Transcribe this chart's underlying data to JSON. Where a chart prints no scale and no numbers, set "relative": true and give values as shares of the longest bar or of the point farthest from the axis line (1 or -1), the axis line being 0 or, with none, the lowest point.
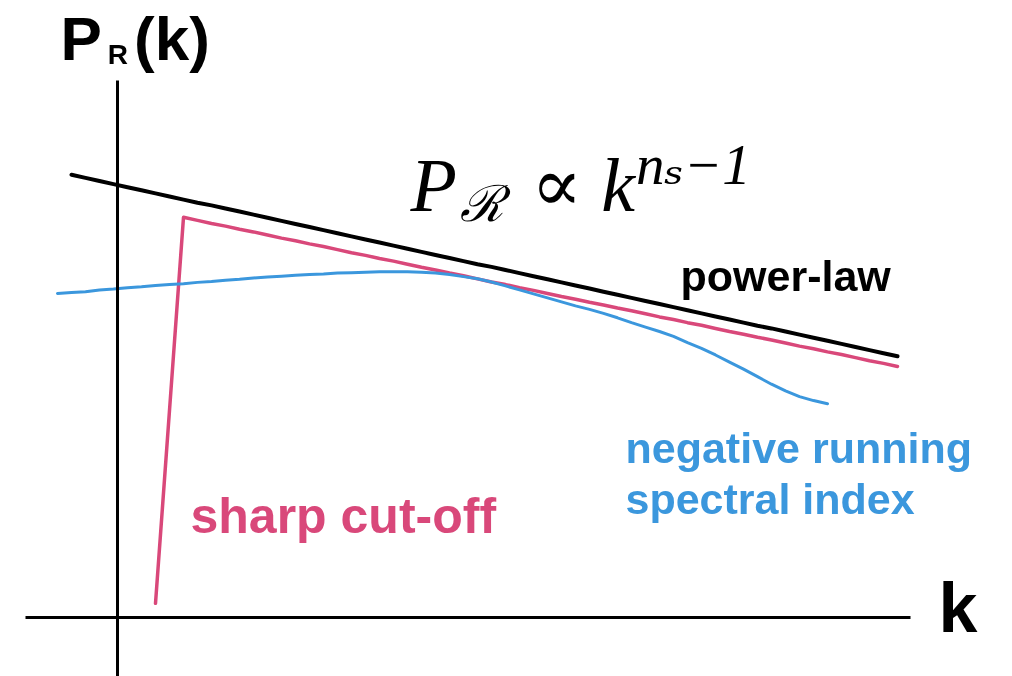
{
  "chart_data": {
    "type": "line",
    "relative": true,
    "xlabel": "k",
    "ylabel": "P$_{R}$(k)",
    "annotations": [
      "P$_{ℛ}$ ∝ k$^{nₛ−1}$"
    ],
    "categories": [
      null,
      null,
      null,
      null,
      null,
      null,
      null,
      null,
      null,
      null,
      null,
      null,
      null,
      null,
      null,
      null,
      null,
      null,
      null,
      null,
      null,
      null,
      null,
      null,
      null,
      null,
      null,
      null,
      null,
      null,
      null,
      null,
      null,
      null,
      null,
      null,
      null,
      null,
      null,
      null,
      null,
      null,
      null,
      null,
      null,
      null,
      null,
      null,
      null,
      null,
      null,
      null,
      null,
      null,
      null,
      null,
      null,
      null,
      null,
      null,
      null
    ],
    "series": [
      {
        "name": "power-law",
        "color": "#000000",
        "values": [
          null,
          1,
          0.993,
          0.986,
          0.979,
          0.972,
          0.965,
          0.958,
          0.951,
          0.944,
          0.937,
          0.931,
          0.924,
          0.917,
          0.91,
          0.903,
          0.896,
          0.889,
          0.882,
          0.875,
          0.868,
          0.861,
          0.854,
          0.847,
          0.84,
          0.833,
          0.826,
          0.819,
          0.812,
          0.805,
          0.798,
          0.792,
          0.785,
          0.778,
          0.771,
          0.764,
          0.757,
          0.75,
          0.743,
          0.736,
          0.729,
          0.722,
          0.715,
          0.708,
          0.701,
          0.694,
          0.687,
          0.68,
          0.673,
          0.666,
          0.659,
          0.653,
          0.646,
          0.639,
          0.632,
          0.625,
          0.618,
          0.611,
          0.604,
          0.597,
          0.59
        ]
      },
      {
        "name": "sharp cut-off",
        "color": "#d9487a",
        "values": [
          null,
          null,
          null,
          null,
          null,
          null,
          null,
          0.032,
          0.468,
          0.904,
          0.897,
          0.89,
          0.884,
          0.877,
          0.871,
          0.864,
          0.857,
          0.851,
          0.844,
          0.838,
          0.831,
          0.824,
          0.818,
          0.811,
          0.805,
          0.798,
          0.791,
          0.785,
          0.778,
          0.772,
          0.765,
          0.758,
          0.752,
          0.745,
          0.739,
          0.732,
          0.725,
          0.719,
          0.712,
          0.706,
          0.699,
          0.693,
          0.686,
          0.679,
          0.673,
          0.666,
          0.66,
          0.653,
          0.646,
          0.64,
          0.633,
          0.627,
          0.62,
          0.613,
          0.607,
          0.6,
          0.594,
          0.587,
          0.58,
          0.574,
          0.567
        ]
      },
      {
        "name": "negative running spectral index",
        "color": "#3b97dd",
        "values": [
          0.732,
          0.734,
          0.736,
          0.74,
          0.742,
          0.745,
          0.747,
          0.75,
          0.752,
          0.754,
          0.757,
          0.759,
          0.762,
          0.764,
          0.767,
          0.769,
          0.771,
          0.773,
          0.775,
          0.776,
          0.778,
          0.779,
          0.78,
          0.781,
          0.781,
          0.781,
          0.78,
          0.778,
          0.775,
          0.77,
          0.765,
          0.758,
          0.749,
          0.74,
          0.731,
          0.722,
          0.713,
          0.704,
          0.696,
          0.687,
          0.677,
          0.666,
          0.656,
          0.646,
          0.635,
          0.621,
          0.608,
          0.593,
          0.577,
          0.561,
          0.544,
          0.527,
          0.512,
          0.499,
          0.49,
          0.483,
          null,
          null,
          null,
          null,
          null
        ]
      }
    ]
  }
}
